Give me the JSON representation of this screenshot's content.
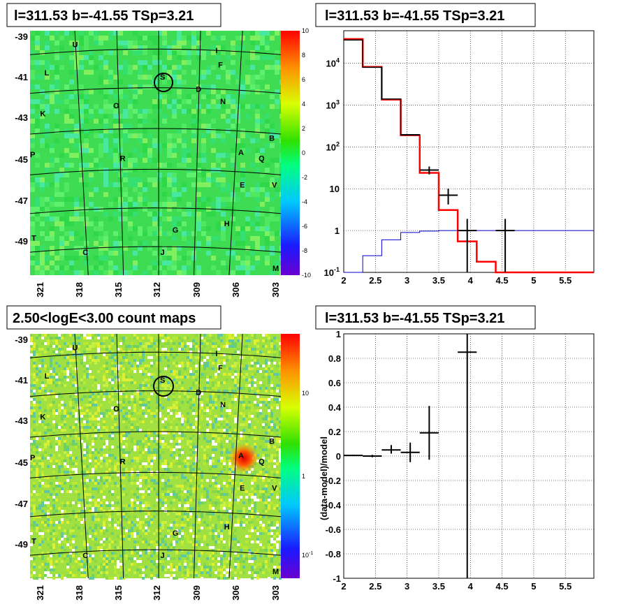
{
  "panels": {
    "tl": {
      "title": "l=311.53 b=-41.55 TSp=3.21",
      "lat_ticks": [
        "-39",
        "-41",
        "-43",
        "-45",
        "-47",
        "-49"
      ],
      "lon_ticks": [
        "321",
        "318",
        "315",
        "312",
        "309",
        "306",
        "303"
      ],
      "colorbar_ticks": [
        "10",
        "8",
        "6",
        "4",
        "2",
        "0",
        "-2",
        "-4",
        "-6",
        "-8",
        "-10"
      ],
      "sources": [
        "U",
        "I",
        "F",
        "L",
        "S",
        "D",
        "N",
        "O",
        "K",
        "B",
        "A",
        "Q",
        "R",
        "E",
        "V",
        "P",
        "H",
        "G",
        "T",
        "C",
        "J",
        "M"
      ]
    },
    "tr": {
      "title": "l=311.53 b=-41.55 TSp=3.21",
      "x_ticks": [
        "2",
        "2.5",
        "3",
        "3.5",
        "4",
        "4.5",
        "5",
        "5.5"
      ],
      "y_ticks": [
        "10",
        "1",
        "10",
        "10²",
        "10³",
        "10⁴"
      ],
      "y_tick_sup": [
        "-1",
        "",
        "",
        "2",
        "3",
        "4"
      ]
    },
    "bl": {
      "title": "2.50<logE<3.00 count maps",
      "lat_ticks": [
        "-39",
        "-41",
        "-43",
        "-45",
        "-47",
        "-49"
      ],
      "lon_ticks": [
        "321",
        "318",
        "315",
        "312",
        "309",
        "306",
        "303"
      ],
      "colorbar_ticks": [
        "10",
        "1",
        "10"
      ],
      "colorbar_sup": [
        "",
        "",
        "-1"
      ],
      "sources": [
        "U",
        "I",
        "F",
        "L",
        "S",
        "D",
        "N",
        "O",
        "K",
        "B",
        "A",
        "Q",
        "R",
        "E",
        "V",
        "P",
        "H",
        "G",
        "T",
        "C",
        "J",
        "M"
      ]
    },
    "br": {
      "title": "l=311.53 b=-41.55 TSp=3.21",
      "ylabel": "(data-model)/model",
      "x_ticks": [
        "2",
        "2.5",
        "3",
        "3.5",
        "4",
        "4.5",
        "5",
        "5.5"
      ],
      "y_ticks": [
        "1",
        "0.8",
        "0.6",
        "0.4",
        "0.2",
        "0",
        "-0.2",
        "-0.4",
        "-0.6",
        "-0.8",
        "-1"
      ]
    }
  },
  "chart_data": [
    {
      "type": "heatmap",
      "title": "l=311.53 b=-41.55 TSp=3.21",
      "axes": "galactic longitude (deg) vs latitude (deg)",
      "xlim": [
        322,
        302.5
      ],
      "ylim": [
        -50.7,
        -38.7
      ],
      "colorbar": {
        "min": -10,
        "max": 10
      },
      "sources": [
        {
          "label": "U",
          "lon": 318.5,
          "lat": -39.5
        },
        {
          "label": "I",
          "lon": 307.5,
          "lat": -39.8
        },
        {
          "label": "F",
          "lon": 307.2,
          "lat": -40.5
        },
        {
          "label": "L",
          "lon": 320.7,
          "lat": -40.9
        },
        {
          "label": "S",
          "lon": 311.7,
          "lat": -41.1
        },
        {
          "label": "D",
          "lon": 308.9,
          "lat": -41.7
        },
        {
          "label": "N",
          "lon": 307.0,
          "lat": -42.3
        },
        {
          "label": "O",
          "lon": 315.3,
          "lat": -42.5
        },
        {
          "label": "K",
          "lon": 321.0,
          "lat": -42.9
        },
        {
          "label": "B",
          "lon": 303.2,
          "lat": -44.1
        },
        {
          "label": "A",
          "lon": 305.6,
          "lat": -44.8
        },
        {
          "label": "Q",
          "lon": 304.0,
          "lat": -45.1
        },
        {
          "label": "R",
          "lon": 314.8,
          "lat": -45.1
        },
        {
          "label": "E",
          "lon": 305.5,
          "lat": -46.4
        },
        {
          "label": "V",
          "lon": 303.0,
          "lat": -46.4
        },
        {
          "label": "P",
          "lon": 321.8,
          "lat": -44.9
        },
        {
          "label": "H",
          "lon": 306.7,
          "lat": -48.3
        },
        {
          "label": "G",
          "lon": 310.7,
          "lat": -48.6
        },
        {
          "label": "T",
          "lon": 321.7,
          "lat": -49.0
        },
        {
          "label": "C",
          "lon": 317.7,
          "lat": -49.7
        },
        {
          "label": "J",
          "lon": 311.7,
          "lat": -49.7
        },
        {
          "label": "M",
          "lon": 302.9,
          "lat": -50.5
        }
      ],
      "circle": {
        "lon": 311.4,
        "lat": -41.2,
        "radius_deg": 0.5
      }
    },
    {
      "type": "line",
      "title": "l=311.53 b=-41.55 TSp=3.21",
      "x_label": "",
      "y_label": "",
      "xlim": [
        2,
        5.95
      ],
      "ylim": [
        0.1,
        60000
      ],
      "y_scale": "log",
      "series": [
        {
          "name": "",
          "color": "#ff0000",
          "style": "step",
          "edges": [
            2.0,
            2.3,
            2.6,
            2.9,
            3.2,
            3.5,
            3.8,
            4.1,
            4.4,
            4.7,
            5.0,
            5.3,
            5.6,
            5.95
          ],
          "values": [
            38000,
            8200,
            1350,
            190,
            24,
            3.1,
            0.55,
            0.18,
            0.1,
            0.1,
            0.1,
            0.1,
            0.1
          ]
        },
        {
          "name": "",
          "color": "#000000",
          "style": "step",
          "edges": [
            2.0,
            2.3,
            2.6,
            2.9,
            3.2
          ],
          "values": [
            36000,
            8000,
            1400,
            195
          ]
        },
        {
          "name": "",
          "color": "#0000cc",
          "style": "step",
          "edges": [
            2.0,
            2.3,
            2.6,
            2.9,
            3.2,
            3.5,
            3.8,
            4.1,
            4.4,
            4.7,
            5.0,
            5.3,
            5.6,
            5.95
          ],
          "values": [
            0.1,
            0.25,
            0.6,
            0.9,
            0.97,
            1.0,
            1.0,
            1.0,
            1.0,
            1.0,
            1.0,
            1.0,
            1.0
          ]
        },
        {
          "name": "",
          "color": "#000000",
          "style": "errorbar",
          "points": [
            {
              "x": 3.05,
              "xerr": 0.15,
              "y": 195,
              "ylo": 190,
              "yhi": 200
            },
            {
              "x": 3.35,
              "xerr": 0.15,
              "y": 28,
              "ylo": 22,
              "yhi": 34
            },
            {
              "x": 3.65,
              "xerr": 0.15,
              "y": 7,
              "ylo": 4.2,
              "yhi": 10
            },
            {
              "x": 3.95,
              "xerr": 0.15,
              "y": 1.0,
              "ylo": 0.1,
              "yhi": 1.9
            },
            {
              "x": 4.55,
              "xerr": 0.15,
              "y": 1.0,
              "ylo": 0.1,
              "yhi": 1.9
            }
          ]
        }
      ]
    },
    {
      "type": "heatmap",
      "title": "2.50<logE<3.00 count maps",
      "axes": "galactic longitude (deg) vs latitude (deg)",
      "xlim": [
        322,
        302.5
      ],
      "ylim": [
        -50.7,
        -38.7
      ],
      "colorbar": {
        "min": 0.05,
        "max": 30,
        "scale": "log"
      },
      "bright_spot": {
        "label": "A",
        "lon": 305.6,
        "lat": -44.8
      },
      "circle": {
        "lon": 311.4,
        "lat": -41.2,
        "radius_deg": 0.5
      }
    },
    {
      "type": "scatter",
      "title": "l=311.53 b=-41.55 TSp=3.21",
      "y_label": "(data-model)/model",
      "xlim": [
        2,
        5.95
      ],
      "ylim": [
        -1,
        1
      ],
      "points": [
        {
          "x": 2.15,
          "xerr": 0.15,
          "y": 0.005,
          "ylo": 0.0,
          "yhi": 0.01
        },
        {
          "x": 2.45,
          "xerr": 0.15,
          "y": 0.0,
          "ylo": -0.01,
          "yhi": 0.01
        },
        {
          "x": 2.75,
          "xerr": 0.15,
          "y": 0.05,
          "ylo": 0.02,
          "yhi": 0.09
        },
        {
          "x": 3.05,
          "xerr": 0.15,
          "y": 0.03,
          "ylo": -0.05,
          "yhi": 0.11
        },
        {
          "x": 3.35,
          "xerr": 0.15,
          "y": 0.19,
          "ylo": -0.03,
          "yhi": 0.41
        },
        {
          "x": 3.95,
          "xerr": 0.15,
          "y": 0.85,
          "ylo": -1.0,
          "yhi": 1.0
        }
      ]
    }
  ]
}
